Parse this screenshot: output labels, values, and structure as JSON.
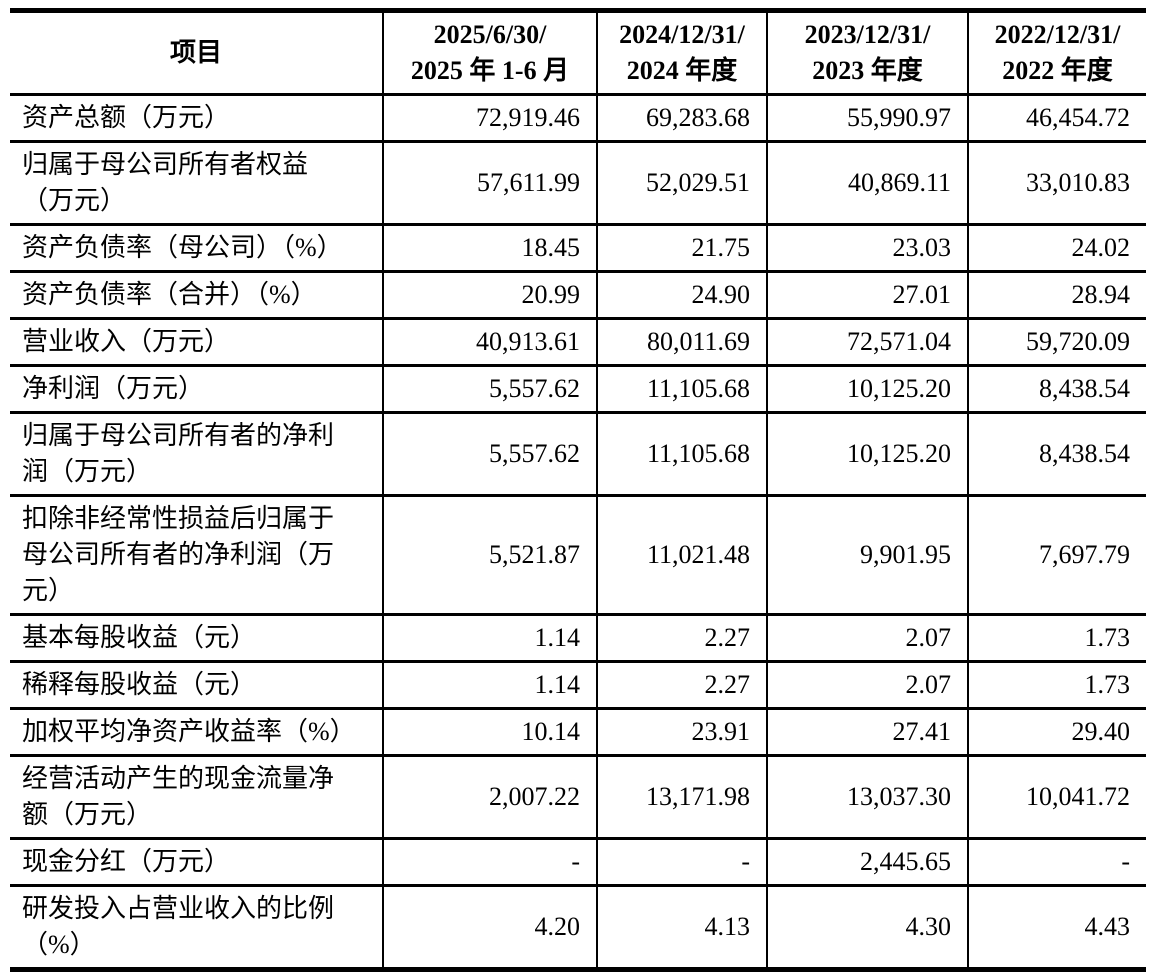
{
  "page": {
    "background_color": "#ffffff",
    "text_color": "#000000",
    "border_color": "#000000"
  },
  "table": {
    "columns": {
      "item": "项目",
      "periods": [
        "2025/6/30/\n2025 年 1-6 月",
        "2024/12/31/\n2024 年度",
        "2023/12/31/\n2023 年度",
        "2022/12/31/\n2022 年度"
      ]
    },
    "rows": [
      {
        "label": "资产总额（万元）",
        "values": [
          "72,919.46",
          "69,283.68",
          "55,990.97",
          "46,454.72"
        ]
      },
      {
        "label": "归属于母公司所有者权益\n（万元）",
        "values": [
          "57,611.99",
          "52,029.51",
          "40,869.11",
          "33,010.83"
        ]
      },
      {
        "label": "资产负债率（母公司）（%）",
        "values": [
          "18.45",
          "21.75",
          "23.03",
          "24.02"
        ]
      },
      {
        "label": "资产负债率（合并）（%）",
        "values": [
          "20.99",
          "24.90",
          "27.01",
          "28.94"
        ]
      },
      {
        "label": "营业收入（万元）",
        "values": [
          "40,913.61",
          "80,011.69",
          "72,571.04",
          "59,720.09"
        ]
      },
      {
        "label": "净利润（万元）",
        "values": [
          "5,557.62",
          "11,105.68",
          "10,125.20",
          "8,438.54"
        ]
      },
      {
        "label": "归属于母公司所有者的净利\n润（万元）",
        "values": [
          "5,557.62",
          "11,105.68",
          "10,125.20",
          "8,438.54"
        ]
      },
      {
        "label": "扣除非经常性损益后归属于\n母公司所有者的净利润（万\n元）",
        "values": [
          "5,521.87",
          "11,021.48",
          "9,901.95",
          "7,697.79"
        ]
      },
      {
        "label": "基本每股收益（元）",
        "values": [
          "1.14",
          "2.27",
          "2.07",
          "1.73"
        ]
      },
      {
        "label": "稀释每股收益（元）",
        "values": [
          "1.14",
          "2.27",
          "2.07",
          "1.73"
        ]
      },
      {
        "label": "加权平均净资产收益率（%）",
        "values": [
          "10.14",
          "23.91",
          "27.41",
          "29.40"
        ]
      },
      {
        "label": "经营活动产生的现金流量净\n额（万元）",
        "values": [
          "2,007.22",
          "13,171.98",
          "13,037.30",
          "10,041.72"
        ]
      },
      {
        "label": "现金分红（万元）",
        "values": [
          "-",
          "-",
          "2,445.65",
          "-"
        ]
      },
      {
        "label": "研发投入占营业收入的比例\n（%）",
        "values": [
          "4.20",
          "4.13",
          "4.30",
          "4.43"
        ]
      }
    ]
  }
}
